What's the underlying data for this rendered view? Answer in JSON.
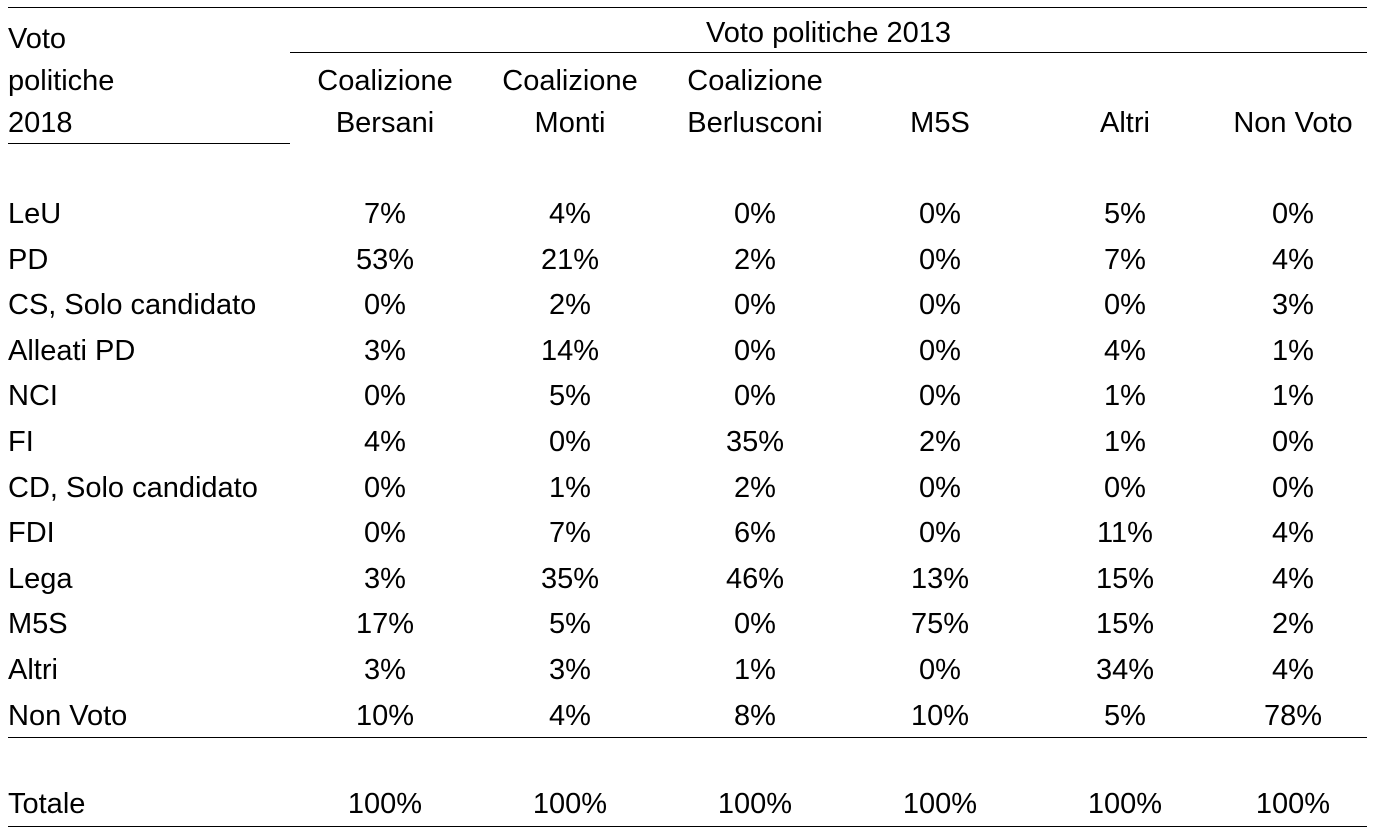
{
  "table": {
    "stub_header": [
      "Voto",
      "politiche",
      "2018"
    ],
    "group_header": "Voto politiche 2013",
    "columns": [
      [
        "Coalizione",
        "Bersani"
      ],
      [
        "Coalizione",
        "Monti"
      ],
      [
        "Coalizione",
        "Berlusconi"
      ],
      [
        "",
        "M5S"
      ],
      [
        "",
        "Altri"
      ],
      [
        "",
        "Non Voto"
      ]
    ],
    "rows": [
      {
        "label": "LeU",
        "values": [
          "7%",
          "4%",
          "0%",
          "0%",
          "5%",
          "0%"
        ]
      },
      {
        "label": "PD",
        "values": [
          "53%",
          "21%",
          "2%",
          "0%",
          "7%",
          "4%"
        ]
      },
      {
        "label": "CS, Solo candidato",
        "values": [
          "0%",
          "2%",
          "0%",
          "0%",
          "0%",
          "3%"
        ]
      },
      {
        "label": "Alleati PD",
        "values": [
          "3%",
          "14%",
          "0%",
          "0%",
          "4%",
          "1%"
        ]
      },
      {
        "label": "NCI",
        "values": [
          "0%",
          "5%",
          "0%",
          "0%",
          "1%",
          "1%"
        ]
      },
      {
        "label": "FI",
        "values": [
          "4%",
          "0%",
          "35%",
          "2%",
          "1%",
          "0%"
        ]
      },
      {
        "label": "CD, Solo candidato",
        "values": [
          "0%",
          "1%",
          "2%",
          "0%",
          "0%",
          "0%"
        ]
      },
      {
        "label": "FDI",
        "values": [
          "0%",
          "7%",
          "6%",
          "0%",
          "11%",
          "4%"
        ]
      },
      {
        "label": "Lega",
        "values": [
          "3%",
          "35%",
          "46%",
          "13%",
          "15%",
          "4%"
        ]
      },
      {
        "label": "M5S",
        "values": [
          "17%",
          "5%",
          "0%",
          "75%",
          "15%",
          "2%"
        ]
      },
      {
        "label": "Altri",
        "values": [
          "3%",
          "3%",
          "1%",
          "0%",
          "34%",
          "4%"
        ]
      },
      {
        "label": "Non Voto",
        "values": [
          "10%",
          "4%",
          "8%",
          "10%",
          "5%",
          "78%"
        ]
      }
    ],
    "total": {
      "label": "Totale",
      "values": [
        "100%",
        "100%",
        "100%",
        "100%",
        "100%",
        "100%"
      ]
    }
  }
}
